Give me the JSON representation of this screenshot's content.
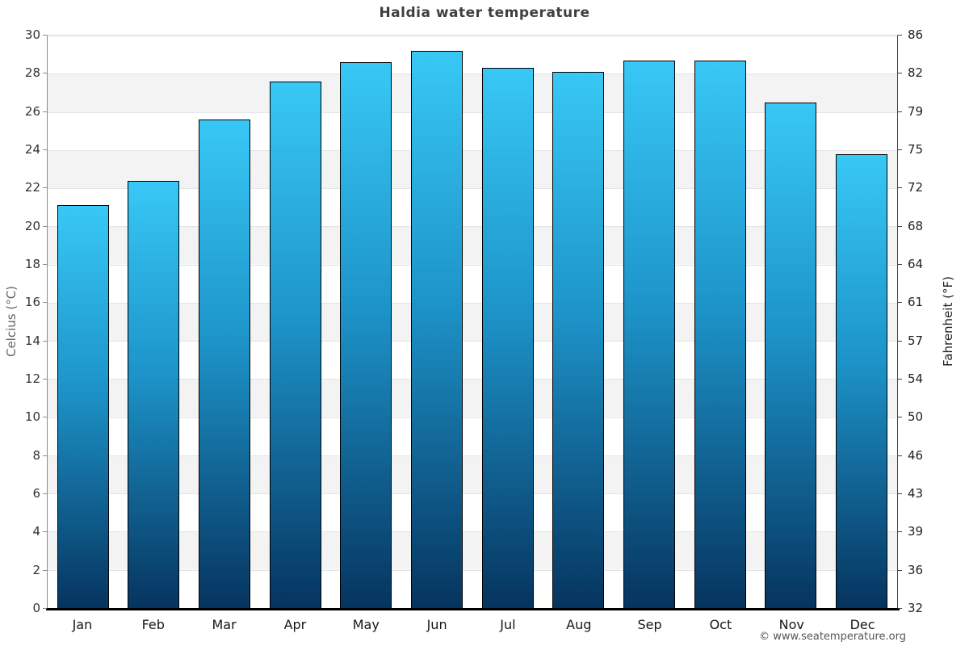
{
  "title": "Haldia water temperature",
  "footer": {
    "credit": "© www.seatemperature.org"
  },
  "chart_data": {
    "type": "bar",
    "title": "Haldia water temperature",
    "categories": [
      "Jan",
      "Feb",
      "Mar",
      "Apr",
      "May",
      "Jun",
      "Jul",
      "Aug",
      "Sep",
      "Oct",
      "Nov",
      "Dec"
    ],
    "values": [
      21.1,
      22.4,
      25.6,
      27.6,
      28.6,
      29.2,
      28.3,
      28.1,
      28.7,
      28.7,
      26.5,
      23.8
    ],
    "xlabel": "",
    "ylabel_left": "Celcius (°C)",
    "ylabel_right": "Fahrenheit (°F)",
    "ylim_celsius": [
      0,
      30
    ],
    "ylim_fahrenheit": [
      32,
      86
    ],
    "yticks_celsius": [
      0,
      2,
      4,
      6,
      8,
      10,
      12,
      14,
      16,
      18,
      20,
      22,
      24,
      26,
      28,
      30
    ],
    "yticks_fahrenheit": [
      32,
      36,
      39,
      43,
      46,
      50,
      54,
      57,
      61,
      64,
      68,
      72,
      75,
      79,
      82,
      86
    ],
    "legend": null,
    "grid": "horizontal-bands",
    "colors": {
      "bar_gradient_top": "#38c8f5",
      "bar_gradient_mid": "#1d94c9",
      "bar_gradient_bottom": "#06345f",
      "bar_border": "#000000",
      "band_light": "#ffffff",
      "band_dark": "#f3f3f3",
      "gridline": "#e4e4e4",
      "axis": "#000000",
      "title_text": "#3f3f3f",
      "tick_text": "#333333"
    }
  }
}
